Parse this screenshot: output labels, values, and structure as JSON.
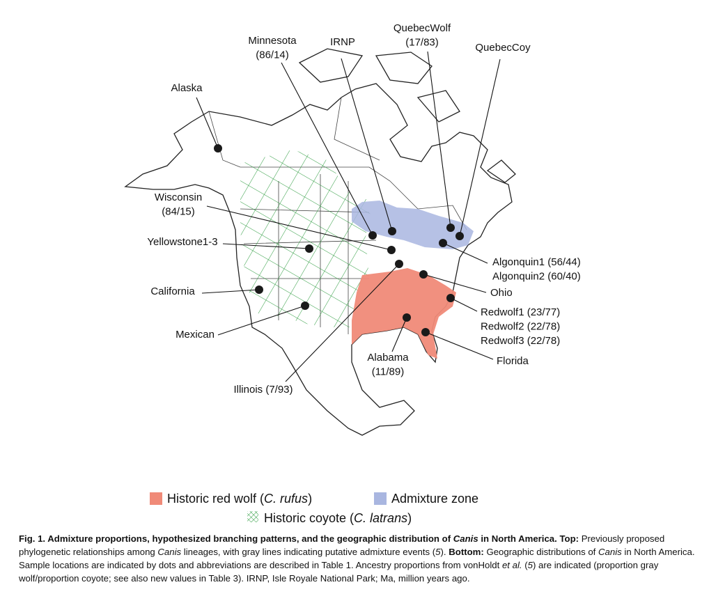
{
  "sites": [
    {
      "lines": [
        "Alaska"
      ]
    },
    {
      "lines": [
        "Minnesota",
        "(86/14)"
      ]
    },
    {
      "lines": [
        "IRNP"
      ]
    },
    {
      "lines": [
        "QuebecWolf",
        "(17/83)"
      ]
    },
    {
      "lines": [
        "QuebecCoy"
      ]
    },
    {
      "lines": [
        "Wisconsin",
        "(84/15)"
      ]
    },
    {
      "lines": [
        "Yellowstone1-3"
      ]
    },
    {
      "lines": [
        "California"
      ]
    },
    {
      "lines": [
        "Mexican"
      ]
    },
    {
      "lines": [
        "Illinois (7/93)"
      ]
    },
    {
      "lines": [
        "Algonquin1 (56/44)",
        "Algonquin2 (60/40)"
      ]
    },
    {
      "lines": [
        "Ohio"
      ]
    },
    {
      "lines": [
        "Redwolf1 (23/77)",
        "Redwolf2 (22/78)",
        "Redwolf3 (22/78)"
      ]
    },
    {
      "lines": [
        "Alabama",
        "(11/89)"
      ]
    },
    {
      "lines": [
        "Florida"
      ]
    }
  ],
  "legend": [
    {
      "runs": [
        "Historic red wolf (",
        "C. rufus",
        ")"
      ]
    },
    {
      "runs": [
        "Admixture zone"
      ]
    },
    {
      "runs": [
        "Historic coyote (",
        "C. latrans",
        ")"
      ]
    }
  ],
  "caption": {
    "runs": [
      "Fig. 1.",
      " Admixture proportions, hypothesized branching patterns, and the geographic distribution of ",
      "Canis",
      " in North America.",
      " Top:",
      " Previously proposed phylogenetic relationships among ",
      "Canis",
      " lineages, with gray lines indicating putative admixture events (",
      "5",
      "). ",
      "Bottom:",
      " Geographic distributions of ",
      "Canis",
      " in North America. Sample locations are indicated by dots and abbreviations are described in Table 1. Ancestry proportions from vonHoldt ",
      "et al.",
      " (",
      "5",
      ") are indicated (proportion gray wolf/proportion coyote; see also new values in Table 3). IRNP, Isle Royale National Park; Ma, million years ago."
    ]
  }
}
